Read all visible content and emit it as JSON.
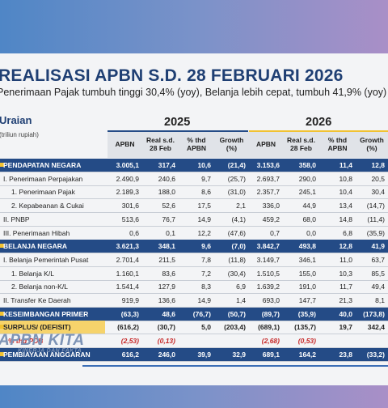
{
  "title": "REALISASI APBN S.D. 28 FEBRUARI 2026",
  "subtitle": "Penerimaan Pajak tumbuh tinggi 30,4% (yoy), Belanja lebih cepat, tumbuh 41,9% (yoy)",
  "uraian_label": "Uraian",
  "unit_label": "(triliun rupiah)",
  "years": [
    "2025",
    "2026"
  ],
  "columns": [
    "APBN",
    "Real s.d. 28 Feb",
    "% thd APBN",
    "Growth (%)",
    "APBN",
    "Real s.d. 28 Feb",
    "% thd APBN",
    "Growth (%)"
  ],
  "rows": [
    {
      "label": "PENDAPATAN NEGARA",
      "style": "blue",
      "values": [
        "3.005,1",
        "317,4",
        "10,6",
        "(21,4)",
        "3.153,6",
        "358,0",
        "11,4",
        "12,8"
      ]
    },
    {
      "label": "I. Penerimaan Perpajakan",
      "style": "indent1",
      "values": [
        "2.490,9",
        "240,6",
        "9,7",
        "(25,7)",
        "2.693,7",
        "290,0",
        "10,8",
        "20,5"
      ]
    },
    {
      "label": "1. Penerimaan Pajak",
      "style": "indent2",
      "values": [
        "2.189,3",
        "188,0",
        "8,6",
        "(31,0)",
        "2.357,7",
        "245,1",
        "10,4",
        "30,4"
      ]
    },
    {
      "label": "2. Kepabeanan & Cukai",
      "style": "indent2",
      "values": [
        "301,6",
        "52,6",
        "17,5",
        "2,1",
        "336,0",
        "44,9",
        "13,4",
        "(14,7)"
      ]
    },
    {
      "label": "II. PNBP",
      "style": "indent1",
      "values": [
        "513,6",
        "76,7",
        "14,9",
        "(4,1)",
        "459,2",
        "68,0",
        "14,8",
        "(11,4)"
      ]
    },
    {
      "label": "III. Penerimaan Hibah",
      "style": "indent1",
      "values": [
        "0,6",
        "0,1",
        "12,2",
        "(47,6)",
        "0,7",
        "0,0",
        "6,8",
        "(35,9)"
      ]
    },
    {
      "label": "BELANJA NEGARA",
      "style": "blue",
      "values": [
        "3.621,3",
        "348,1",
        "9,6",
        "(7,0)",
        "3.842,7",
        "493,8",
        "12,8",
        "41,9"
      ]
    },
    {
      "label": "I. Belanja Pemerintah Pusat",
      "style": "indent1",
      "values": [
        "2.701,4",
        "211,5",
        "7,8",
        "(11,8)",
        "3.149,7",
        "346,1",
        "11,0",
        "63,7"
      ]
    },
    {
      "label": "1. Belanja K/L",
      "style": "indent2",
      "values": [
        "1.160,1",
        "83,6",
        "7,2",
        "(30,4)",
        "1.510,5",
        "155,0",
        "10,3",
        "85,5"
      ]
    },
    {
      "label": "2. Belanja non-K/L",
      "style": "indent2",
      "values": [
        "1.541,4",
        "127,9",
        "8,3",
        "6,9",
        "1.639,2",
        "191,0",
        "11,7",
        "49,4"
      ]
    },
    {
      "label": "II. Transfer Ke Daerah",
      "style": "indent1",
      "values": [
        "919,9",
        "136,6",
        "14,9",
        "1,4",
        "693,0",
        "147,7",
        "21,3",
        "8,1"
      ]
    },
    {
      "label": "KESEIMBANGAN PRIMER",
      "style": "blue",
      "values": [
        "(63,3)",
        "48,6",
        "(76,7)",
        "(50,7)",
        "(89,7)",
        "(35,9)",
        "40,0",
        "(173,8)"
      ]
    },
    {
      "label": "SURPLUS/ (DEFISIT)",
      "style": "yellow",
      "values": [
        "(616,2)",
        "(30,7)",
        "5,0",
        "(203,4)",
        "(689,1)",
        "(135,7)",
        "19,7",
        "342,4"
      ]
    },
    {
      "label": "% thd PDB",
      "style": "red",
      "values": [
        "(2,53)",
        "(0,13)",
        "",
        "",
        "(2,68)",
        "(0,53)",
        "",
        ""
      ]
    },
    {
      "label": "PEMBIAYAAN ANGGARAN",
      "style": "blue",
      "values": [
        "616,2",
        "246,0",
        "39,9",
        "32,9",
        "689,1",
        "164,2",
        "23,8",
        "(33,2)"
      ]
    }
  ],
  "logo_text": "APBN KITA",
  "logo_subtext": "KINERJA DAN FAKTA"
}
